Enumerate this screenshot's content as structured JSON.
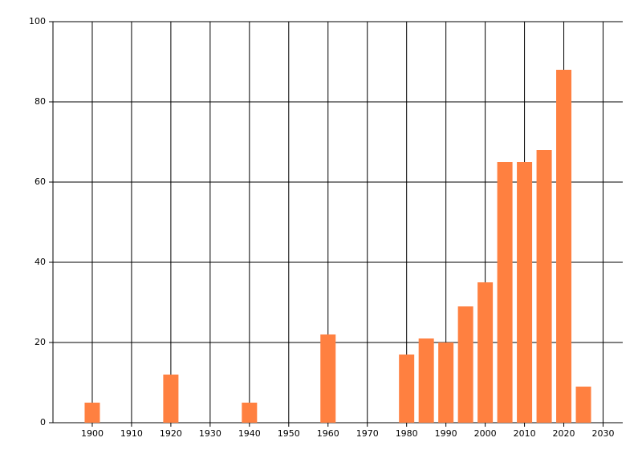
{
  "chart_data": {
    "type": "bar",
    "x": [
      1900,
      1920,
      1940,
      1960,
      1980,
      1985,
      1990,
      1995,
      2000,
      2005,
      2010,
      2015,
      2020,
      2025
    ],
    "values": [
      5,
      12,
      5,
      22,
      17,
      21,
      20,
      29,
      35,
      65,
      65,
      68,
      88,
      9
    ],
    "color": "#ff8040",
    "xlim": [
      1890,
      2035
    ],
    "xticks": [
      1900,
      1910,
      1920,
      1930,
      1940,
      1950,
      1960,
      1970,
      1980,
      1990,
      2000,
      2010,
      2020,
      2030
    ],
    "ylim": [
      0,
      100
    ],
    "yticks": [
      0,
      20,
      40,
      60,
      80,
      100
    ],
    "grid": true
  }
}
